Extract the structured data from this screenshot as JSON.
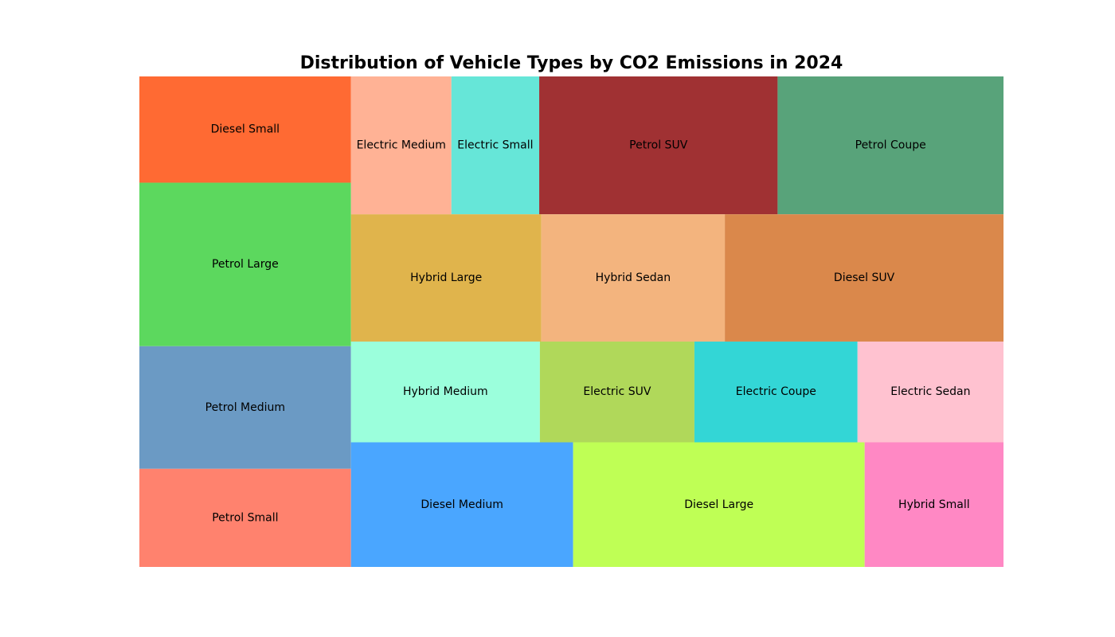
{
  "chart_data": {
    "type": "treemap",
    "title": "Distribution of Vehicle Types by CO2 Emissions in 2024",
    "xlabel": "",
    "ylabel": "",
    "grid": false,
    "legend": "none",
    "categories": [
      "Petrol Small",
      "Petrol Medium",
      "Petrol Large",
      "Diesel Small",
      "Diesel Medium",
      "Diesel Large",
      "Hybrid Small",
      "Hybrid Medium",
      "Electric SUV",
      "Electric Coupe",
      "Electric Sedan",
      "Hybrid Large",
      "Hybrid Sedan",
      "Diesel SUV",
      "Electric Medium",
      "Electric Small",
      "Petrol SUV",
      "Petrol Coupe"
    ],
    "values": [
      120,
      150,
      200,
      130,
      160,
      210,
      100,
      110,
      90,
      95,
      85,
      140,
      135,
      205,
      80,
      70,
      190,
      180
    ],
    "colors": [
      "#ff826e",
      "#6b9ac4",
      "#5cd85e",
      "#ff6a33",
      "#4aa6ff",
      "#bfff55",
      "#ff88c4",
      "#9bffdc",
      "#b0d85a",
      "#33d6d6",
      "#ffc2d0",
      "#e0b44c",
      "#f3b47e",
      "#da884b",
      "#ffb295",
      "#66e6d8",
      "#a03133",
      "#58a37a"
    ],
    "layout": {
      "columns": [
        {
          "direction": "vertical",
          "items": [
            3,
            2,
            1,
            0
          ]
        },
        {
          "direction": "vertical",
          "rows": [
            {
              "items": [
                14,
                15,
                16,
                17
              ]
            },
            {
              "items": [
                11,
                12,
                13
              ]
            },
            {
              "items": [
                7,
                8,
                9,
                10
              ]
            },
            {
              "items": [
                4,
                5,
                6
              ]
            }
          ]
        }
      ]
    }
  }
}
